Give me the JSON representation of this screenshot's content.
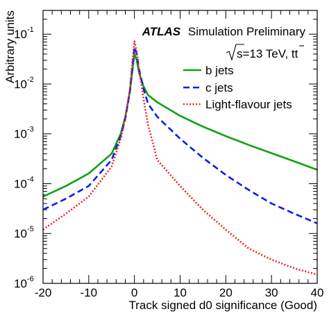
{
  "chart_data": {
    "type": "line",
    "title": "",
    "annotation": {
      "experiment": "ATLAS",
      "status": "Simulation Preliminary",
      "energy_prefix": "s=13 TeV, t",
      "energy_suffix": "t"
    },
    "xlabel": "Track signed d0 significance (Good)",
    "ylabel": "Arbitrary units",
    "xlim": [
      -20,
      40
    ],
    "ylim": [
      1e-06,
      0.3
    ],
    "yscale": "log",
    "x_ticks": [
      "-20",
      "-10",
      "0",
      "10",
      "20",
      "30",
      "40"
    ],
    "y_ticks": [
      {
        "base": "10",
        "exp": "-6"
      },
      {
        "base": "10",
        "exp": "-5"
      },
      {
        "base": "10",
        "exp": "-4"
      },
      {
        "base": "10",
        "exp": "-3"
      },
      {
        "base": "10",
        "exp": "-2"
      },
      {
        "base": "10",
        "exp": "-1"
      }
    ],
    "legend_position": "top-right",
    "series": [
      {
        "name": "b jets",
        "color": "#12a012",
        "style": "solid",
        "x": [
          -20,
          -15,
          -10,
          -5,
          -3,
          -2,
          -1,
          -0.5,
          0,
          0.5,
          1,
          2,
          3,
          5,
          10,
          15,
          20,
          25,
          30,
          35,
          40
        ],
        "y": [
          5.5e-05,
          9e-05,
          0.00016,
          0.0004,
          0.001,
          0.0022,
          0.007,
          0.017,
          0.04,
          0.03,
          0.017,
          0.009,
          0.006,
          0.0043,
          0.0023,
          0.0014,
          0.0009,
          0.0006,
          0.00041,
          0.00028,
          0.00019
        ]
      },
      {
        "name": "c jets",
        "color": "#0a1ee6",
        "style": "dashed",
        "x": [
          -20,
          -15,
          -10,
          -5,
          -3,
          -2,
          -1,
          -0.5,
          0,
          0.5,
          1,
          2,
          3,
          5,
          10,
          15,
          20,
          25,
          30,
          35,
          40
        ],
        "y": [
          3e-05,
          5e-05,
          9e-05,
          0.0003,
          0.0009,
          0.002,
          0.007,
          0.02,
          0.055,
          0.04,
          0.02,
          0.008,
          0.004,
          0.0022,
          0.0008,
          0.00033,
          0.00015,
          7.5e-05,
          4e-05,
          2.5e-05,
          1.6e-05
        ]
      },
      {
        "name": "Light-flavour jets",
        "color": "#ee2222",
        "style": "dotted",
        "x": [
          -20,
          -15,
          -10,
          -5,
          -3,
          -2,
          -1,
          -0.5,
          0,
          0.5,
          1,
          2,
          3,
          5,
          10,
          15,
          20,
          25,
          30,
          35,
          40
        ],
        "y": [
          1.2e-05,
          2.5e-05,
          5.5e-05,
          0.00022,
          0.0008,
          0.002,
          0.008,
          0.025,
          0.072,
          0.045,
          0.02,
          0.005,
          0.0015,
          0.0003,
          9e-05,
          3e-05,
          1.2e-05,
          5e-06,
          3e-06,
          2e-06,
          1.5e-06
        ]
      }
    ]
  }
}
